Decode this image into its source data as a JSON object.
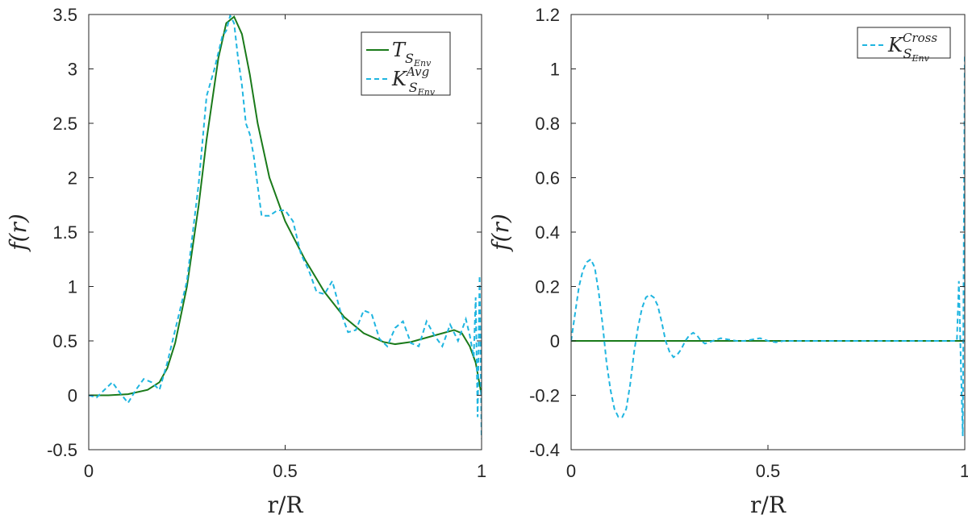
{
  "colors": {
    "green": "#1a7a1a",
    "cyan": "#1fb5e0",
    "axis": "#262626"
  },
  "chart_data": [
    {
      "type": "line",
      "xlabel": "r/R",
      "ylabel": "f(r)",
      "xlim": [
        0,
        1
      ],
      "ylim": [
        -0.5,
        3.5
      ],
      "xticks": [
        "0",
        "0.5",
        "1"
      ],
      "yticks": [
        "-0.5",
        "0",
        "0.5",
        "1",
        "1.5",
        "2",
        "2.5",
        "3",
        "3.5"
      ],
      "legend_position": "top-right",
      "series": [
        {
          "name_main": "T",
          "name_sub": "S",
          "name_subsub": "Env",
          "name_sup": "",
          "color": "#1a7a1a",
          "style": "solid",
          "x": [
            0,
            0.05,
            0.1,
            0.15,
            0.18,
            0.2,
            0.22,
            0.25,
            0.28,
            0.3,
            0.33,
            0.35,
            0.37,
            0.39,
            0.41,
            0.43,
            0.46,
            0.5,
            0.55,
            0.6,
            0.65,
            0.7,
            0.75,
            0.78,
            0.82,
            0.88,
            0.93,
            0.95,
            0.97,
            0.985,
            0.995,
            1.0
          ],
          "y": [
            0,
            0,
            0.01,
            0.05,
            0.12,
            0.25,
            0.48,
            1.0,
            1.75,
            2.35,
            3.1,
            3.42,
            3.48,
            3.32,
            2.95,
            2.5,
            2.0,
            1.6,
            1.25,
            0.95,
            0.72,
            0.57,
            0.49,
            0.47,
            0.49,
            0.55,
            0.6,
            0.57,
            0.45,
            0.3,
            0.1,
            0.0
          ]
        },
        {
          "name_main": "K",
          "name_sub": "S",
          "name_subsub": "Env",
          "name_sup": "Avg",
          "color": "#1fb5e0",
          "style": "dashed",
          "x": [
            0,
            0.02,
            0.04,
            0.06,
            0.08,
            0.1,
            0.12,
            0.14,
            0.16,
            0.18,
            0.2,
            0.22,
            0.25,
            0.28,
            0.3,
            0.32,
            0.34,
            0.35,
            0.36,
            0.37,
            0.38,
            0.39,
            0.4,
            0.41,
            0.42,
            0.44,
            0.46,
            0.48,
            0.5,
            0.52,
            0.54,
            0.56,
            0.58,
            0.6,
            0.62,
            0.64,
            0.66,
            0.68,
            0.7,
            0.72,
            0.74,
            0.76,
            0.78,
            0.8,
            0.82,
            0.84,
            0.86,
            0.88,
            0.9,
            0.92,
            0.94,
            0.95,
            0.96,
            0.97,
            0.98,
            0.985,
            0.99,
            0.995,
            1.0
          ],
          "y": [
            0,
            -0.02,
            0.05,
            0.12,
            0.02,
            -0.07,
            0.05,
            0.15,
            0.12,
            0.05,
            0.3,
            0.6,
            1.05,
            1.95,
            2.75,
            3.0,
            3.3,
            3.35,
            3.49,
            3.42,
            3.1,
            2.85,
            2.5,
            2.4,
            2.2,
            1.65,
            1.65,
            1.7,
            1.7,
            1.6,
            1.3,
            1.15,
            0.95,
            0.93,
            1.05,
            0.78,
            0.58,
            0.6,
            0.78,
            0.75,
            0.52,
            0.45,
            0.62,
            0.68,
            0.48,
            0.45,
            0.68,
            0.55,
            0.45,
            0.65,
            0.5,
            0.6,
            0.7,
            0.55,
            0.35,
            0.9,
            -0.2,
            1.1,
            -0.4
          ]
        }
      ]
    },
    {
      "type": "line",
      "xlabel": "r/R",
      "ylabel": "f(r)",
      "xlim": [
        0,
        1
      ],
      "ylim": [
        -0.4,
        1.2
      ],
      "xticks": [
        "0",
        "0.5",
        "1"
      ],
      "yticks": [
        "-0.4",
        "-0.2",
        "0",
        "0.2",
        "0.4",
        "0.6",
        "0.8",
        "1",
        "1.2"
      ],
      "legend_position": "top-right",
      "series": [
        {
          "name_main": "",
          "name_sub": "",
          "name_subsub": "",
          "name_sup": "",
          "color": "#1a7a1a",
          "style": "solid",
          "x": [
            0,
            1.0
          ],
          "y": [
            0,
            0
          ]
        },
        {
          "name_main": "K",
          "name_sub": "S",
          "name_subsub": "Env",
          "name_sup": "Cross",
          "color": "#1fb5e0",
          "style": "dashed",
          "x": [
            0,
            0.01,
            0.02,
            0.03,
            0.04,
            0.05,
            0.06,
            0.07,
            0.08,
            0.09,
            0.1,
            0.11,
            0.12,
            0.13,
            0.14,
            0.15,
            0.16,
            0.17,
            0.18,
            0.19,
            0.2,
            0.21,
            0.22,
            0.23,
            0.24,
            0.25,
            0.26,
            0.27,
            0.28,
            0.29,
            0.3,
            0.31,
            0.32,
            0.33,
            0.34,
            0.35,
            0.36,
            0.37,
            0.38,
            0.4,
            0.42,
            0.44,
            0.46,
            0.48,
            0.5,
            0.52,
            0.54,
            0.56,
            0.6,
            0.65,
            0.7,
            0.8,
            0.9,
            0.95,
            0.97,
            0.98,
            0.985,
            0.99,
            0.995,
            1.0
          ],
          "y": [
            0,
            0.1,
            0.2,
            0.26,
            0.29,
            0.3,
            0.27,
            0.18,
            0.06,
            -0.08,
            -0.18,
            -0.25,
            -0.28,
            -0.28,
            -0.25,
            -0.16,
            -0.04,
            0.05,
            0.12,
            0.16,
            0.17,
            0.16,
            0.13,
            0.07,
            0.0,
            -0.04,
            -0.06,
            -0.05,
            -0.03,
            0.0,
            0.02,
            0.03,
            0.02,
            0.0,
            -0.01,
            -0.005,
            0.0,
            0.005,
            0.01,
            0.005,
            0.0,
            0.0,
            0.005,
            0.01,
            0.0,
            -0.005,
            0.0,
            0.0,
            0.0,
            0.0,
            0.0,
            0.0,
            0.0,
            0.0,
            0.0,
            0.0,
            0.22,
            -0.08,
            -0.35,
            1.05
          ]
        }
      ]
    }
  ]
}
